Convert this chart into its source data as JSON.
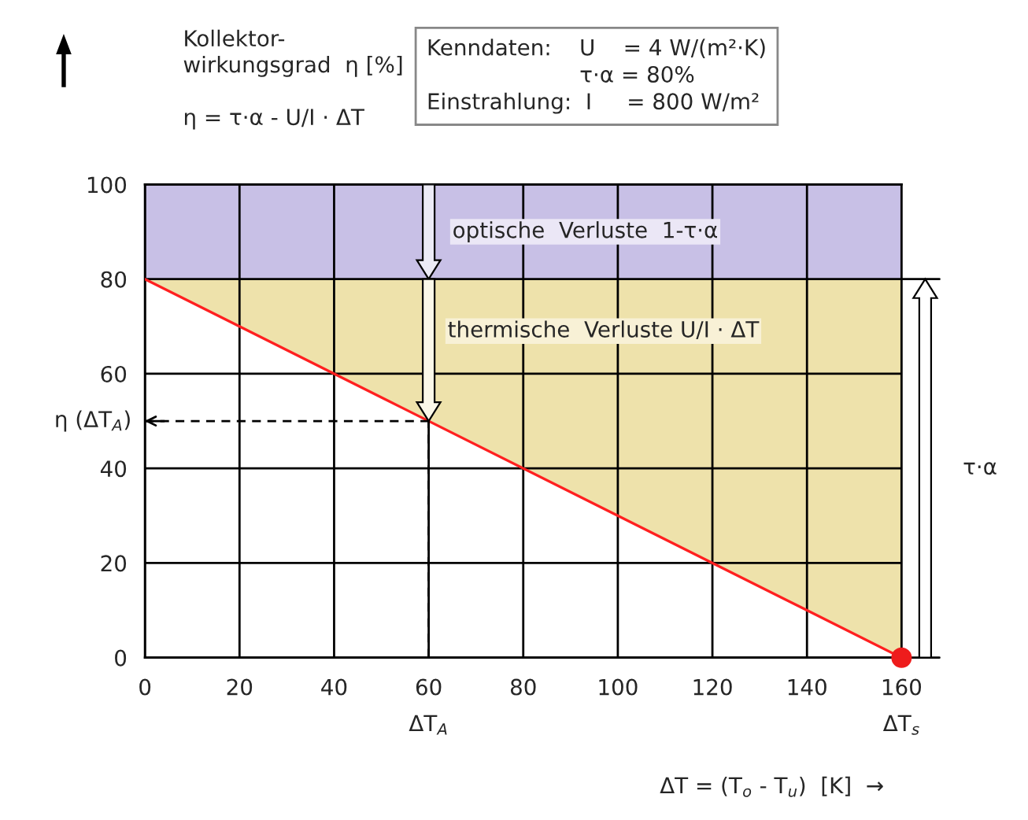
{
  "chart_data": {
    "type": "line",
    "xlabel": "ΔT = (T$_{o}$ - T$_{u}$)  [K]  →",
    "ylabel": "Kollektor-\nwirkungsgrad  η [%]",
    "x": [
      0,
      160
    ],
    "series": [
      {
        "color": "#ff2020",
        "values": [
          80,
          0
        ],
        "lower": [
          80,
          0
        ],
        "upper": [
          80,
          80
        ]
      },
      {
        "type": "scatter",
        "color": "#ee1c1c",
        "marker": "circle",
        "x": [
          160
        ],
        "values": [
          0
        ]
      }
    ],
    "xlim": [
      0,
      160
    ],
    "ylim": [
      0,
      100
    ],
    "xticks": [
      0,
      20,
      40,
      60,
      80,
      100,
      120,
      140,
      160
    ],
    "yticks": [
      0,
      20,
      40,
      60,
      80,
      100
    ],
    "grid": true,
    "bands": [
      {
        "axis": "y",
        "from": 80,
        "to": 100,
        "label": "optische  Verluste  1-τ·α",
        "color": "#c8c0e6"
      }
    ],
    "ref_lines": [
      {
        "axis": "x",
        "value": 60,
        "label": "ΔT$_{A}$",
        "line_style": "dashed"
      },
      {
        "axis": "y",
        "value": 50,
        "label": "η (ΔT$_{A}$)",
        "line_style": "dashed"
      }
    ],
    "annotations": [
      "η = τ·α - U/I · ΔT",
      "Kenndaten:    U    = 4 W/(m²·K)\n                      τ·α = 80%\nEinstrahlung:  I     = 800 W/m²",
      "thermische  Verluste U/I · ΔT",
      {
        "text": "ΔT$_{s}$",
        "x": 160,
        "y": 0
      },
      {
        "text": "τ·α",
        "x": 160,
        "y": 40
      }
    ]
  }
}
